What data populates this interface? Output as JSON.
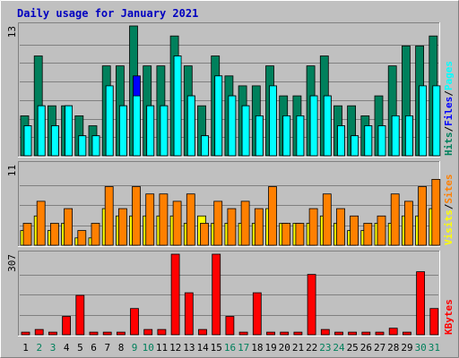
{
  "chart_data": {
    "type": "bar",
    "title": "Daily usage for January 2021",
    "categories": [
      "1",
      "2",
      "3",
      "4",
      "5",
      "6",
      "7",
      "8",
      "9",
      "10",
      "11",
      "12",
      "13",
      "14",
      "15",
      "16",
      "17",
      "18",
      "19",
      "20",
      "21",
      "22",
      "23",
      "24",
      "25",
      "26",
      "27",
      "28",
      "29",
      "30",
      "31"
    ],
    "weekend_days": [
      "2",
      "3",
      "9",
      "10",
      "16",
      "17",
      "23",
      "24",
      "30",
      "31"
    ],
    "colors": {
      "hits": "#00805c",
      "files": "#0000ff",
      "pages": "#00ffff",
      "visits": "#ffff00",
      "sites": "#ff8000",
      "kbytes": "#ff0000",
      "title": "#0000c0",
      "weekday_label": "#000000",
      "weekend_label": "#00805c"
    },
    "panels": [
      {
        "id": "hits-files-pages",
        "max_label": "13",
        "ymax": 13,
        "legend": [
          {
            "text": "Hits",
            "color": "#00805c"
          },
          {
            "text": "/",
            "color": "#000000"
          },
          {
            "text": "Files",
            "color": "#0000ff"
          },
          {
            "text": "/",
            "color": "#000000"
          },
          {
            "text": "Pages",
            "color": "#00ffff"
          }
        ],
        "series": [
          {
            "name": "Hits",
            "color": "#00805c",
            "values": [
              4,
              10,
              5,
              5,
              4,
              3,
              9,
              9,
              13,
              9,
              9,
              12,
              9,
              5,
              10,
              8,
              7,
              7,
              9,
              6,
              6,
              9,
              10,
              5,
              5,
              4,
              6,
              9,
              11,
              11,
              12
            ]
          },
          {
            "name": "Files",
            "color": "#0000ff",
            "values": [
              3,
              5,
              3,
              5,
              2,
              2,
              7,
              5,
              8,
              5,
              5,
              10,
              6,
              2,
              8,
              6,
              5,
              4,
              7,
              4,
              4,
              6,
              6,
              3,
              2,
              3,
              3,
              4,
              4,
              7,
              7
            ]
          },
          {
            "name": "Pages",
            "color": "#00ffff",
            "values": [
              3,
              5,
              3,
              5,
              2,
              2,
              7,
              5,
              6,
              5,
              5,
              10,
              6,
              2,
              8,
              6,
              5,
              4,
              7,
              4,
              4,
              6,
              6,
              3,
              2,
              3,
              3,
              4,
              4,
              7,
              7
            ]
          }
        ]
      },
      {
        "id": "visits-sites",
        "max_label": "11",
        "ymax": 11,
        "legend": [
          {
            "text": "Visits",
            "color": "#ffff00"
          },
          {
            "text": "/",
            "color": "#000000"
          },
          {
            "text": "Sites",
            "color": "#ff8000"
          }
        ],
        "series": [
          {
            "name": "Visits",
            "color": "#ffff00",
            "values": [
              2,
              4,
              2,
              3,
              1,
              1,
              5,
              4,
              4,
              4,
              4,
              4,
              3,
              4,
              3,
              3,
              3,
              3,
              5,
              3,
              3,
              3,
              4,
              3,
              2,
              2,
              3,
              3,
              4,
              4,
              5
            ]
          },
          {
            "name": "Sites",
            "color": "#ff8000",
            "values": [
              3,
              6,
              3,
              5,
              2,
              3,
              8,
              5,
              8,
              7,
              7,
              6,
              7,
              3,
              6,
              5,
              6,
              5,
              8,
              3,
              3,
              5,
              7,
              5,
              4,
              3,
              4,
              7,
              6,
              8,
              9
            ]
          }
        ]
      },
      {
        "id": "kbytes",
        "max_label": "307",
        "ymax": 307,
        "legend": [
          {
            "text": "KBytes",
            "color": "#ff0000"
          }
        ],
        "series": [
          {
            "name": "KBytes",
            "color": "#ff0000",
            "values": [
              10,
              20,
              10,
              70,
              150,
              10,
              10,
              10,
              100,
              20,
              20,
              307,
              160,
              20,
              307,
              70,
              10,
              160,
              10,
              10,
              10,
              230,
              20,
              10,
              10,
              10,
              10,
              25,
              10,
              240,
              100
            ]
          }
        ]
      }
    ]
  }
}
